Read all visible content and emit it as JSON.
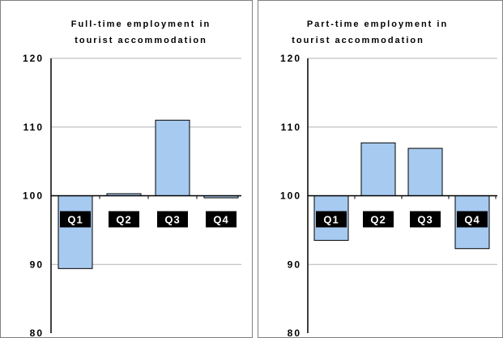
{
  "chart_data": [
    {
      "type": "bar",
      "title_lines": [
        "Full-time employment in",
        "tourist accommodation"
      ],
      "categories": [
        "Q1",
        "Q2",
        "Q3",
        "Q4"
      ],
      "values": [
        89.4,
        100.3,
        111.0,
        99.7
      ],
      "baseline": 100,
      "ylim": [
        80,
        120
      ],
      "yticks": [
        "80",
        "90",
        "100",
        "110",
        "120"
      ],
      "bar_color": "#a6caf0",
      "label_bg": "#000000",
      "label_color": "#ffffff",
      "grid": true,
      "xlabel": "",
      "ylabel": ""
    },
    {
      "type": "bar",
      "title_lines": [
        "Part-time employment in",
        "tourist accommodation"
      ],
      "categories": [
        "Q1",
        "Q2",
        "Q3",
        "Q4"
      ],
      "values": [
        93.5,
        107.7,
        106.9,
        92.3
      ],
      "baseline": 100,
      "ylim": [
        80,
        120
      ],
      "yticks": [
        "80",
        "90",
        "100",
        "110",
        "120"
      ],
      "bar_color": "#a6caf0",
      "label_bg": "#000000",
      "label_color": "#ffffff",
      "grid": true,
      "xlabel": "",
      "ylabel": ""
    }
  ]
}
